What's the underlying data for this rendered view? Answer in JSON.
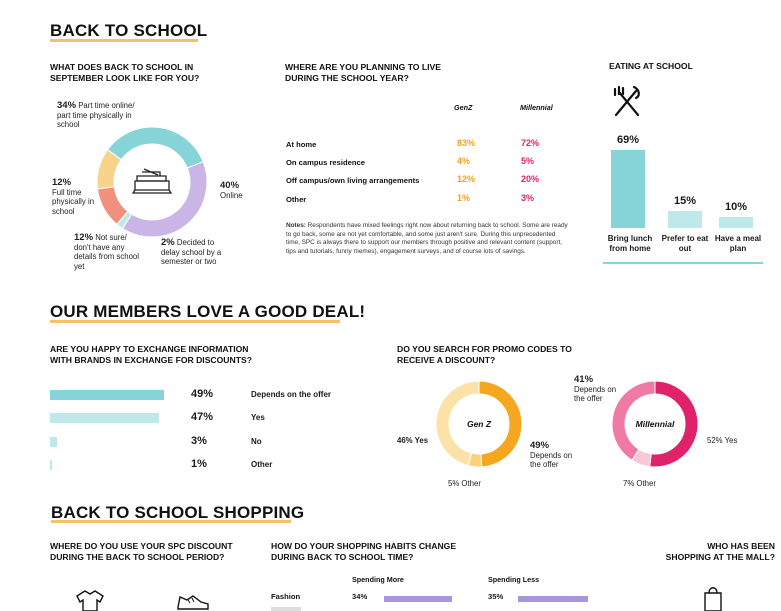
{
  "sections": {
    "back_to_school": "BACK TO SCHOOL",
    "good_deal": "OUR MEMBERS LOVE A GOOD DEAL!",
    "shopping": "BACK TO SCHOOL SHOPPING"
  },
  "colors": {
    "teal": "#86d4d8",
    "teal_light": "#bfe8ea",
    "lavender": "#c9b6e6",
    "salmon": "#f0917e",
    "pale_orange": "#f8d38c",
    "genz_orange": "#f5a81f",
    "genz_light": "#fbd27a",
    "mill_pink": "#e0226b",
    "mill_light": "#f07aa3",
    "mill_pale": "#f8c8d9",
    "purple_bar": "#a896dc",
    "underline": "#f5c26b"
  },
  "september": {
    "question": "WHAT DOES BACK TO SCHOOL IN SEPTEMBER LOOK LIKE FOR YOU?",
    "center_icon": "books-icon",
    "labels": [
      {
        "pct": "34%",
        "text": "Part time online/ part time physically in school"
      },
      {
        "pct": "40%",
        "text": "Online"
      },
      {
        "pct": "12%",
        "text": "Full time physically in school"
      },
      {
        "pct": "12%",
        "text": "Not sure/ don't have any details from school yet"
      },
      {
        "pct": "2%",
        "text": "Decided to delay school by a semester or two"
      }
    ]
  },
  "living": {
    "question": "WHERE ARE YOU PLANNING TO LIVE DURING THE SCHOOL YEAR?",
    "col_genz": "GenZ",
    "col_mill": "Millennial",
    "rows": [
      {
        "label": "At home",
        "genz": "83%",
        "mill": "72%"
      },
      {
        "label": "On campus residence",
        "genz": "4%",
        "mill": "5%"
      },
      {
        "label": "Off campus/own living arrangements",
        "genz": "12%",
        "mill": "20%"
      },
      {
        "label": "Other",
        "genz": "1%",
        "mill": "3%"
      }
    ],
    "notes_label": "Notes:",
    "notes": "Respondents have mixed feelings right now about returning back to school. Some are ready to go back, some are not yet comfortable, and some just aren't sure. During this unprecedented time, SPC is always there to support our members through positive and relevant content (support, tips and tutorials, funny memes), engagement surveys, and of course lots of savings."
  },
  "eating": {
    "question": "EATING AT SCHOOL",
    "icon": "fork-knife-icon"
  },
  "exchange": {
    "question": "ARE YOU HAPPY TO EXCHANGE INFORMATION WITH BRANDS IN EXCHANGE FOR DISCOUNTS?"
  },
  "promo": {
    "question": "DO YOU SEARCH FOR PROMO CODES TO RECEIVE A DISCOUNT?",
    "genz_center": "Gen Z",
    "mill_center": "Millennial",
    "genz_labels": {
      "yes": "46% Yes",
      "depends_pct": "49%",
      "depends_text": "Depends on the offer",
      "other": "5% Other"
    },
    "mill_labels": {
      "depends_pct": "41%",
      "depends_text": "Depends on the offer",
      "yes": "52% Yes",
      "other": "7% Other"
    }
  },
  "shopping": {
    "q_discount": "WHERE DO YOU USE YOUR SPC DISCOUNT DURING THE BACK TO SCHOOL PERIOD?",
    "q_habits": "HOW DO YOUR SHOPPING HABITS CHANGE DURING BACK TO SCHOOL TIME?",
    "q_mall": "WHO HAS BEEN SHOPPING AT THE MALL?",
    "col_more": "Spending More",
    "col_less": "Spending Less",
    "row_label": "Fashion",
    "more_value": "34%",
    "less_value": "35%",
    "more_fraction": 0.34,
    "less_fraction": 0.35,
    "icons": [
      "shirt-icon",
      "shoe-icon",
      "shopping-bag-icon"
    ]
  },
  "chart_data": [
    {
      "type": "pie",
      "title": "WHAT DOES BACK TO SCHOOL IN SEPTEMBER LOOK LIKE FOR YOU?",
      "categories": [
        "Part time online/ part time physically in school",
        "Online",
        "Decided to delay school by a semester or two",
        "Not sure/ don't have any details from school yet",
        "Full time physically in school"
      ],
      "values": [
        34,
        40,
        2,
        12,
        12
      ]
    },
    {
      "type": "bar",
      "title": "EATING AT SCHOOL",
      "categories": [
        "Bring lunch from home",
        "Prefer to eat out",
        "Have a meal plan"
      ],
      "values": [
        69,
        15,
        10
      ],
      "value_labels": [
        "69%",
        "15%",
        "10%"
      ]
    },
    {
      "type": "bar",
      "title": "ARE YOU HAPPY TO EXCHANGE INFORMATION WITH BRANDS IN EXCHANGE FOR DISCOUNTS?",
      "categories": [
        "Depends on the offer",
        "Yes",
        "No",
        "Other"
      ],
      "values": [
        49,
        47,
        3,
        1
      ],
      "value_labels": [
        "49%",
        "47%",
        "3%",
        "1%"
      ]
    },
    {
      "type": "pie",
      "title": "Gen Z",
      "categories": [
        "Depends on the offer",
        "Other",
        "Yes"
      ],
      "values": [
        49,
        5,
        46
      ]
    },
    {
      "type": "pie",
      "title": "Millennial",
      "categories": [
        "Yes",
        "Other",
        "Depends on the offer"
      ],
      "values": [
        52,
        7,
        41
      ]
    }
  ]
}
